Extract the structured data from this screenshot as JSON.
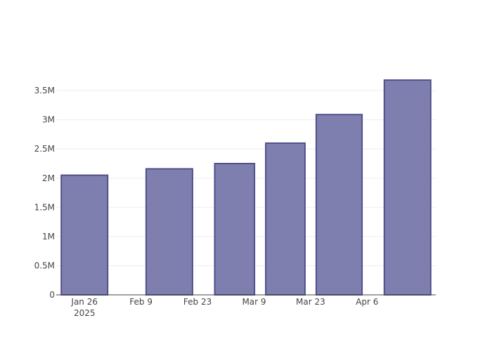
{
  "chart_data": {
    "type": "bar",
    "title": "",
    "xlabel": "",
    "ylabel": "",
    "x_dates": [
      "2025-01-26",
      "2025-02-16",
      "2025-03-05",
      "2025-03-16",
      "2025-03-30",
      "2025-04-16"
    ],
    "x_ticks": [
      {
        "date": "2025-01-26",
        "label": "Jan 26",
        "sublabel": "2025"
      },
      {
        "date": "2025-02-09",
        "label": "Feb 9",
        "sublabel": ""
      },
      {
        "date": "2025-02-23",
        "label": "Feb 23",
        "sublabel": ""
      },
      {
        "date": "2025-03-09",
        "label": "Mar 9",
        "sublabel": ""
      },
      {
        "date": "2025-03-23",
        "label": "Mar 23",
        "sublabel": ""
      },
      {
        "date": "2025-04-06",
        "label": "Apr 6",
        "sublabel": ""
      }
    ],
    "values": [
      2050000,
      2160000,
      2250000,
      2600000,
      3090000,
      3680000
    ],
    "ylim": [
      0,
      3850000
    ],
    "y_ticks": [
      {
        "value": 0,
        "label": "0"
      },
      {
        "value": 500000,
        "label": "0.5M"
      },
      {
        "value": 1000000,
        "label": "1M"
      },
      {
        "value": 1500000,
        "label": "1.5M"
      },
      {
        "value": 2000000,
        "label": "2M"
      },
      {
        "value": 2500000,
        "label": "2.5M"
      },
      {
        "value": 3000000,
        "label": "3M"
      },
      {
        "value": 3500000,
        "label": "3.5M"
      }
    ],
    "grid": true,
    "legend": "none",
    "colors": {
      "bar_fill": "#7f7faf",
      "bar_stroke": "#4f4f8a",
      "grid": "#eeeeee",
      "axis": "#444444",
      "text": "#444444"
    }
  }
}
